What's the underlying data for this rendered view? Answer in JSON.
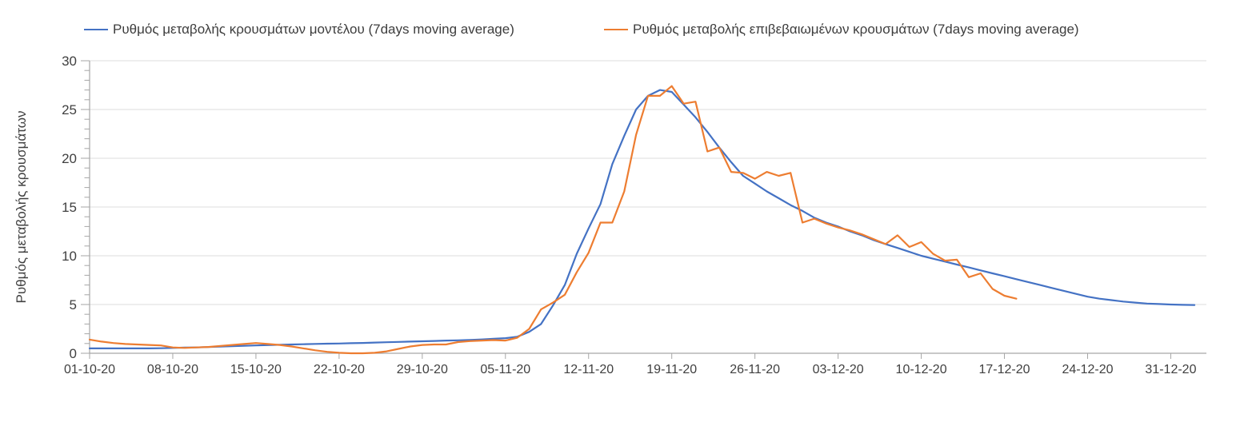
{
  "colors": {
    "background": "#ffffff",
    "grid": "#dedede",
    "axis": "#a6a6a6",
    "text": "#404040",
    "series_blue": "#4472C4",
    "series_orange": "#ED7D31"
  },
  "chart_data": {
    "type": "line",
    "title": "",
    "xlabel": "",
    "ylabel": "Ρυθμός μεταβολής κρουσμάτων",
    "ylim": [
      0,
      30
    ],
    "y_major_step": 5,
    "y_minor_step": 1,
    "grid": true,
    "legend_position": "top",
    "x_start_date": "01-10-20",
    "x_total_days": 94,
    "x_tick_days": [
      0,
      7,
      14,
      21,
      28,
      35,
      42,
      49,
      56,
      63,
      70,
      77,
      84,
      91
    ],
    "x_tick_labels": [
      "01-10-20",
      "08-10-20",
      "15-10-20",
      "22-10-20",
      "29-10-20",
      "05-11-20",
      "12-11-20",
      "19-11-20",
      "26-11-20",
      "03-12-20",
      "10-12-20",
      "17-12-20",
      "24-12-20",
      "31-12-20"
    ],
    "series": [
      {
        "id": "model",
        "name": "Ρυθμός μεταβολής κρουσμάτων μοντέλου (7days moving average)",
        "color": "#4472C4",
        "start_day": 0,
        "step_days": 1,
        "values": [
          0.5,
          0.5,
          0.5,
          0.5,
          0.5,
          0.5,
          0.52,
          0.55,
          0.58,
          0.6,
          0.64,
          0.68,
          0.72,
          0.76,
          0.8,
          0.84,
          0.87,
          0.9,
          0.93,
          0.96,
          0.98,
          1.0,
          1.03,
          1.06,
          1.1,
          1.13,
          1.16,
          1.2,
          1.23,
          1.26,
          1.3,
          1.33,
          1.37,
          1.42,
          1.48,
          1.55,
          1.7,
          2.2,
          3.0,
          4.9,
          7.0,
          10.2,
          12.8,
          15.3,
          19.4,
          22.3,
          25.0,
          26.4,
          27.0,
          26.8,
          25.5,
          24.2,
          22.7,
          21.1,
          19.6,
          18.2,
          17.4,
          16.6,
          15.9,
          15.2,
          14.6,
          13.9,
          13.4,
          13.0,
          12.5,
          12.1,
          11.6,
          11.2,
          10.8,
          10.4,
          10.0,
          9.7,
          9.4,
          9.1,
          8.8,
          8.5,
          8.2,
          7.9,
          7.6,
          7.3,
          7.0,
          6.7,
          6.4,
          6.1,
          5.8,
          5.6,
          5.45,
          5.3,
          5.2,
          5.1,
          5.05,
          5.0,
          4.97,
          4.95
        ]
      },
      {
        "id": "confirmed",
        "name": "Ρυθμός μεταβολής επιβεβαιωμένων κρουσμάτων (7days moving average)",
        "color": "#ED7D31",
        "start_day": 0,
        "step_days": 1,
        "values": [
          1.4,
          1.2,
          1.05,
          0.95,
          0.9,
          0.85,
          0.8,
          0.6,
          0.55,
          0.6,
          0.65,
          0.75,
          0.85,
          0.95,
          1.05,
          0.95,
          0.85,
          0.7,
          0.5,
          0.3,
          0.15,
          0.05,
          0.0,
          0.0,
          0.05,
          0.2,
          0.45,
          0.7,
          0.85,
          0.9,
          0.9,
          1.15,
          1.25,
          1.3,
          1.35,
          1.3,
          1.6,
          2.5,
          4.5,
          5.2,
          6.0,
          8.3,
          10.3,
          13.4,
          13.4,
          16.6,
          22.4,
          26.4,
          26.4,
          27.4,
          25.6,
          25.8,
          20.7,
          21.1,
          18.6,
          18.5,
          17.9,
          18.6,
          18.2,
          18.5,
          13.4,
          13.8,
          13.3,
          12.9,
          12.6,
          12.2,
          11.7,
          11.2,
          12.1,
          10.9,
          11.4,
          10.2,
          9.5,
          9.6,
          7.8,
          8.2,
          6.6,
          5.9,
          5.6
        ]
      }
    ]
  }
}
